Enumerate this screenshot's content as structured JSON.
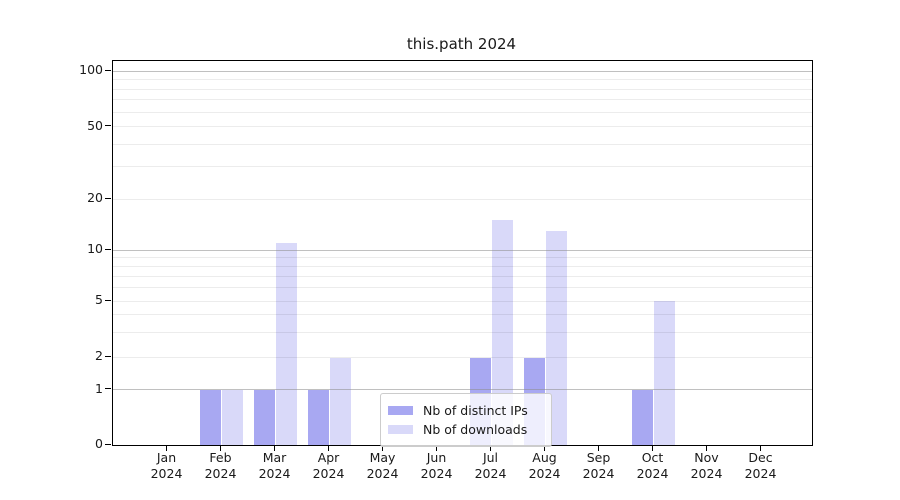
{
  "chart_data": {
    "type": "bar",
    "title": "this.path 2024",
    "categories": [
      "Jan",
      "Feb",
      "Mar",
      "Apr",
      "May",
      "Jun",
      "Jul",
      "Aug",
      "Sep",
      "Oct",
      "Nov",
      "Dec"
    ],
    "category_sublabel": "2024",
    "series": [
      {
        "name": "Nb of distinct IPs",
        "color": "#a8a8f2",
        "values": [
          0,
          1,
          1,
          1,
          0,
          0,
          2,
          2,
          0,
          1,
          0,
          0
        ]
      },
      {
        "name": "Nb of downloads",
        "color": "#d9d9f9",
        "values": [
          0,
          1,
          11,
          2,
          0,
          0,
          15,
          13,
          0,
          5,
          0,
          0
        ]
      }
    ],
    "xlabel": "",
    "ylabel": "",
    "y_axis": {
      "scale": "symlog-like",
      "range": [
        0,
        110
      ],
      "tick_labels": [
        "0",
        "1",
        "2",
        "5",
        "10",
        "20",
        "50",
        "100"
      ],
      "ticks": [
        0,
        1,
        2,
        5,
        10,
        20,
        50,
        100
      ],
      "major_gridlines": [
        1,
        10,
        100
      ],
      "minor_gridlines": [
        2,
        3,
        4,
        5,
        6,
        7,
        8,
        9,
        20,
        30,
        40,
        50,
        60,
        70,
        80,
        90
      ]
    },
    "grid": true,
    "legend_position": "lower center"
  }
}
